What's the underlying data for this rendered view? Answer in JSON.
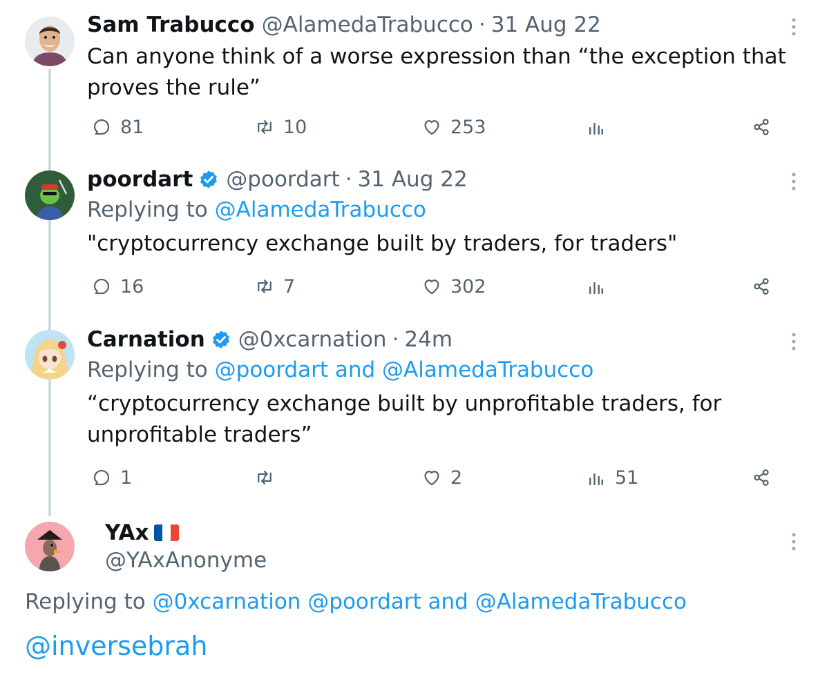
{
  "tweets": [
    {
      "name": "Sam Trabucco",
      "handle": "@AlamedaTrabucco",
      "date": "31 Aug 22",
      "verified": false,
      "text": "Can anyone think of a worse expression than “the exception that proves the rule”",
      "replies": "81",
      "retweets": "10",
      "likes": "253",
      "views": ""
    },
    {
      "name": "poordart",
      "handle": "@poordart",
      "date": "31 Aug 22",
      "verified": true,
      "replying_prefix": "Replying to",
      "replying_to": "@AlamedaTrabucco",
      "text": "\"cryptocurrency exchange built by traders, for traders\"",
      "replies": "16",
      "retweets": "7",
      "likes": "302",
      "views": ""
    },
    {
      "name": "Carnation",
      "handle": "@0xcarnation",
      "date": "24m",
      "verified": true,
      "replying_prefix": "Replying to",
      "replying_to": "@poordart and @AlamedaTrabucco",
      "text": "“cryptocurrency exchange built by unprofitable traders, for unprofitable traders”",
      "replies": "1",
      "retweets": "",
      "likes": "2",
      "views": "51"
    }
  ],
  "main_tweet": {
    "name": "YAx",
    "flag": "france",
    "handle": "@YAxAnonyme",
    "replying_prefix": "Replying to",
    "replying_to": "@0xcarnation @poordart and @AlamedaTrabucco",
    "text": "@inversebrah"
  },
  "colors": {
    "accent": "#1d9bf0",
    "secondary_text": "#536471",
    "thread_line": "#cfd9de"
  },
  "icons": [
    "reply-icon",
    "retweet-icon",
    "like-icon",
    "views-icon",
    "share-icon",
    "more-icon",
    "verified-badge-icon"
  ]
}
